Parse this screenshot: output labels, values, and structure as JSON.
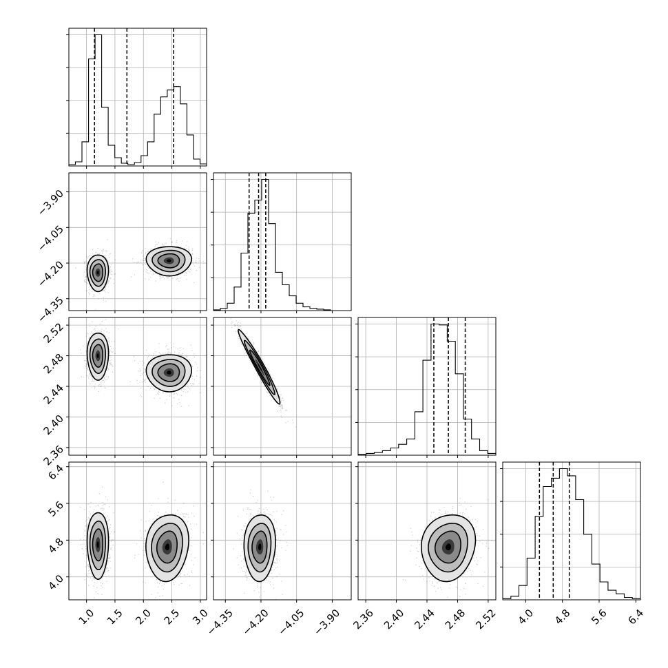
{
  "chart_data": {
    "type": "corner",
    "params": [
      {
        "id": "p0",
        "range": [
          0.69,
          3.11
        ],
        "ticks": [
          1.0,
          1.5,
          2.0,
          2.5,
          3.0
        ],
        "tick_labels": [
          "1.0",
          "1.5",
          "2.0",
          "2.5",
          "3.0"
        ],
        "quantiles": [
          1.14,
          1.71,
          2.53
        ]
      },
      {
        "id": "p1",
        "range": [
          -4.4,
          -3.82
        ],
        "ticks": [
          -4.35,
          -4.2,
          -4.05,
          -3.9
        ],
        "tick_labels": [
          "−4.35",
          "−4.20",
          "−4.05",
          "−3.90"
        ],
        "quantiles": [
          -4.25,
          -4.21,
          -4.18
        ]
      },
      {
        "id": "p2",
        "range": [
          2.35,
          2.53
        ],
        "ticks": [
          2.36,
          2.4,
          2.44,
          2.48,
          2.52
        ],
        "tick_labels": [
          "2.36",
          "2.40",
          "2.44",
          "2.48",
          "2.52"
        ],
        "quantiles": [
          2.449,
          2.468,
          2.49
        ]
      },
      {
        "id": "p3",
        "range": [
          3.5,
          6.5
        ],
        "ticks": [
          4.0,
          4.8,
          5.6,
          6.4
        ],
        "tick_labels": [
          "4.0",
          "4.8",
          "5.6",
          "6.4"
        ],
        "quantiles": [
          4.3,
          4.6,
          4.95
        ]
      }
    ],
    "histograms": [
      [
        2,
        6,
        35,
        155,
        190,
        85,
        30,
        12,
        4,
        2,
        5,
        15,
        35,
        75,
        100,
        110,
        115,
        90,
        45,
        10,
        3
      ],
      [
        1,
        3,
        10,
        32,
        78,
        132,
        150,
        178,
        118,
        52,
        35,
        20,
        10,
        5,
        3,
        2,
        1,
        0,
        0,
        0
      ],
      [
        1,
        2,
        3,
        5,
        8,
        12,
        18,
        48,
        105,
        145,
        144,
        126,
        90,
        40,
        18,
        5,
        2
      ],
      [
        1,
        3,
        12,
        35,
        70,
        95,
        102,
        110,
        104,
        84,
        55,
        30,
        15,
        8,
        5,
        2,
        1
      ]
    ],
    "panels": [
      {
        "x": 0,
        "y": 1,
        "clusters": [
          {
            "cx": 1.2,
            "cy": -4.24,
            "sx": 0.085,
            "sy": 0.035,
            "rho": 0.0
          },
          {
            "cx": 2.45,
            "cy": -4.19,
            "sx": 0.18,
            "sy": 0.028,
            "rho": 0.0
          }
        ]
      },
      {
        "x": 0,
        "y": 2,
        "clusters": [
          {
            "cx": 1.2,
            "cy": 2.48,
            "sx": 0.085,
            "sy": 0.014,
            "rho": 0.0
          },
          {
            "cx": 2.45,
            "cy": 2.458,
            "sx": 0.18,
            "sy": 0.011,
            "rho": 0.0
          }
        ]
      },
      {
        "x": 0,
        "y": 3,
        "clusters": [
          {
            "cx": 1.2,
            "cy": 4.7,
            "sx": 0.085,
            "sy": 0.33,
            "rho": 0.0
          },
          {
            "cx": 2.42,
            "cy": 4.65,
            "sx": 0.17,
            "sy": 0.33,
            "rho": 0.1
          }
        ]
      },
      {
        "x": 1,
        "y": 2,
        "clusters": [
          {
            "cx": -4.205,
            "cy": 2.465,
            "sx": 0.04,
            "sy": 0.022,
            "rho": -0.97
          }
        ]
      },
      {
        "x": 1,
        "y": 3,
        "clusters": [
          {
            "cx": -4.205,
            "cy": 4.65,
            "sx": 0.03,
            "sy": 0.33,
            "rho": 0.05
          }
        ]
      },
      {
        "x": 2,
        "y": 3,
        "clusters": [
          {
            "cx": 2.468,
            "cy": 4.65,
            "sx": 0.016,
            "sy": 0.33,
            "rho": 0.1
          }
        ]
      }
    ]
  }
}
